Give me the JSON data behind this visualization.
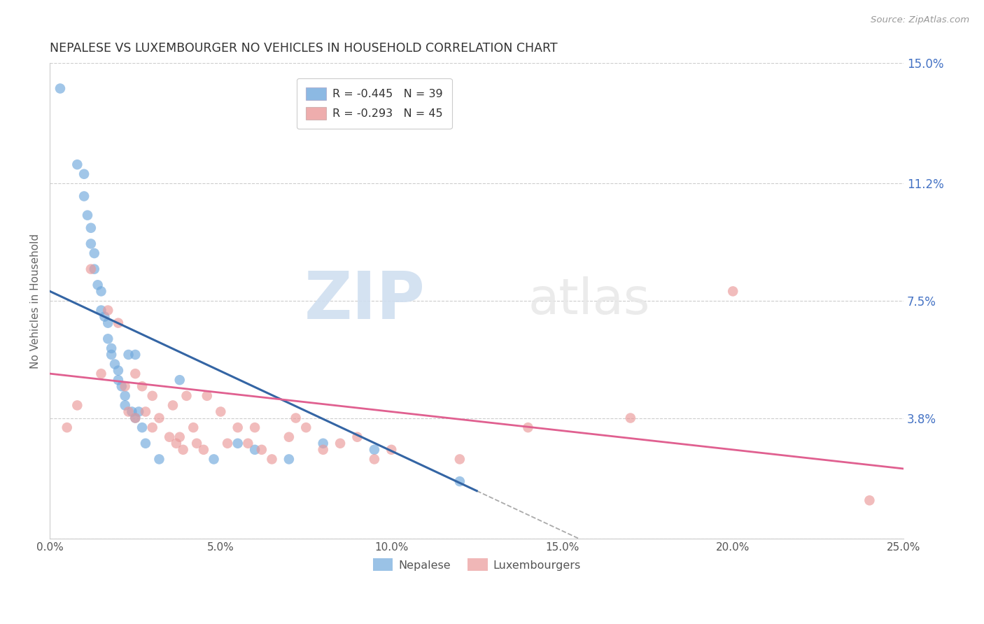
{
  "title": "NEPALESE VS LUXEMBOURGER NO VEHICLES IN HOUSEHOLD CORRELATION CHART",
  "source": "Source: ZipAtlas.com",
  "xlabel_ticks": [
    0.0,
    5.0,
    10.0,
    15.0,
    20.0,
    25.0
  ],
  "ylabel_ticks": [
    0.0,
    3.8,
    7.5,
    11.2,
    15.0
  ],
  "ylabel_label": "No Vehicles in Household",
  "xmax": 25.0,
  "ymax": 15.0,
  "nepalese_R": -0.445,
  "nepalese_N": 39,
  "luxembourger_R": -0.293,
  "luxembourger_N": 45,
  "nepalese_color": "#6fa8dc",
  "luxembourger_color": "#ea9999",
  "nepalese_line_color": "#3465a4",
  "luxembourger_line_color": "#e06090",
  "watermark_zip": "ZIP",
  "watermark_atlas": "atlas",
  "legend_nepalese": "Nepalese",
  "legend_luxembourger": "Luxembourgers",
  "nepalese_x": [
    0.3,
    0.8,
    1.0,
    1.0,
    1.1,
    1.2,
    1.2,
    1.3,
    1.3,
    1.4,
    1.5,
    1.5,
    1.6,
    1.7,
    1.7,
    1.8,
    1.8,
    1.9,
    2.0,
    2.0,
    2.1,
    2.2,
    2.2,
    2.3,
    2.4,
    2.5,
    2.5,
    2.6,
    2.7,
    2.8,
    3.2,
    3.8,
    4.8,
    5.5,
    6.0,
    7.0,
    8.0,
    9.5,
    12.0
  ],
  "nepalese_y": [
    14.2,
    11.8,
    11.5,
    10.8,
    10.2,
    9.8,
    9.3,
    9.0,
    8.5,
    8.0,
    7.8,
    7.2,
    7.0,
    6.8,
    6.3,
    6.0,
    5.8,
    5.5,
    5.3,
    5.0,
    4.8,
    4.5,
    4.2,
    5.8,
    4.0,
    3.8,
    5.8,
    4.0,
    3.5,
    3.0,
    2.5,
    5.0,
    2.5,
    3.0,
    2.8,
    2.5,
    3.0,
    2.8,
    1.8
  ],
  "luxembourger_x": [
    0.5,
    0.8,
    1.2,
    1.5,
    1.7,
    2.0,
    2.2,
    2.3,
    2.5,
    2.5,
    2.7,
    2.8,
    3.0,
    3.0,
    3.2,
    3.5,
    3.6,
    3.7,
    3.8,
    3.9,
    4.0,
    4.2,
    4.3,
    4.5,
    4.6,
    5.0,
    5.2,
    5.5,
    5.8,
    6.0,
    6.2,
    6.5,
    7.0,
    7.2,
    7.5,
    8.0,
    8.5,
    9.0,
    9.5,
    10.0,
    12.0,
    14.0,
    17.0,
    20.0,
    24.0
  ],
  "luxembourger_y": [
    3.5,
    4.2,
    8.5,
    5.2,
    7.2,
    6.8,
    4.8,
    4.0,
    3.8,
    5.2,
    4.8,
    4.0,
    4.5,
    3.5,
    3.8,
    3.2,
    4.2,
    3.0,
    3.2,
    2.8,
    4.5,
    3.5,
    3.0,
    2.8,
    4.5,
    4.0,
    3.0,
    3.5,
    3.0,
    3.5,
    2.8,
    2.5,
    3.2,
    3.8,
    3.5,
    2.8,
    3.0,
    3.2,
    2.5,
    2.8,
    2.5,
    3.5,
    3.8,
    7.8,
    1.2
  ],
  "ne_line_x0": 0.0,
  "ne_line_x1": 12.5,
  "lx_line_x0": 0.0,
  "lx_line_x1": 25.0,
  "ne_line_y0": 7.8,
  "ne_line_y1": 1.5,
  "lx_line_y0": 5.2,
  "lx_line_y1": 2.2
}
